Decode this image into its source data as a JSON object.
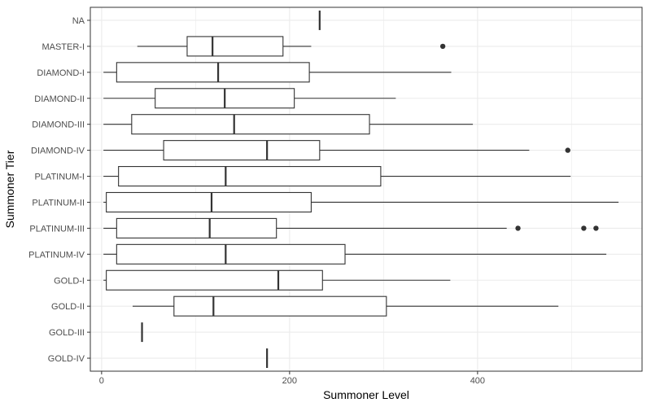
{
  "chart_data": {
    "type": "boxplot",
    "orientation": "horizontal",
    "xlabel": "Summoner Level",
    "ylabel": "Summoner Tier",
    "xlim": [
      -12,
      575
    ],
    "xticks": [
      0,
      200,
      400
    ],
    "grid": true,
    "theme": "bw",
    "colors": {
      "box_fill": "#ffffff",
      "line": "#333333",
      "grid": "#ebebeb",
      "panel_border": "#333333"
    },
    "categories": [
      "NA",
      "MASTER-I",
      "DIAMOND-I",
      "DIAMOND-II",
      "DIAMOND-III",
      "DIAMOND-IV",
      "PLATINUM-I",
      "PLATINUM-II",
      "PLATINUM-III",
      "PLATINUM-IV",
      "GOLD-I",
      "GOLD-II",
      "GOLD-III",
      "GOLD-IV"
    ],
    "boxes": [
      {
        "tier": "NA",
        "min": 232,
        "q1": 232,
        "median": 232,
        "q3": 232,
        "max": 232,
        "outliers": []
      },
      {
        "tier": "MASTER-I",
        "min": 38,
        "q1": 91,
        "median": 118,
        "q3": 193,
        "max": 223,
        "outliers": [
          363
        ]
      },
      {
        "tier": "DIAMOND-I",
        "min": 2,
        "q1": 16,
        "median": 124,
        "q3": 221,
        "max": 372,
        "outliers": []
      },
      {
        "tier": "DIAMOND-II",
        "min": 2,
        "q1": 57,
        "median": 131,
        "q3": 205,
        "max": 313,
        "outliers": []
      },
      {
        "tier": "DIAMOND-III",
        "min": 2,
        "q1": 32,
        "median": 141,
        "q3": 285,
        "max": 395,
        "outliers": []
      },
      {
        "tier": "DIAMOND-IV",
        "min": 2,
        "q1": 66,
        "median": 176,
        "q3": 232,
        "max": 455,
        "outliers": [
          496
        ]
      },
      {
        "tier": "PLATINUM-I",
        "min": 2,
        "q1": 18,
        "median": 132,
        "q3": 297,
        "max": 499,
        "outliers": []
      },
      {
        "tier": "PLATINUM-II",
        "min": 2,
        "q1": 5,
        "median": 117,
        "q3": 223,
        "max": 550,
        "outliers": []
      },
      {
        "tier": "PLATINUM-III",
        "min": 2,
        "q1": 16,
        "median": 115,
        "q3": 186,
        "max": 431,
        "outliers": [
          443,
          513,
          526
        ]
      },
      {
        "tier": "PLATINUM-IV",
        "min": 2,
        "q1": 16,
        "median": 132,
        "q3": 259,
        "max": 537,
        "outliers": []
      },
      {
        "tier": "GOLD-I",
        "min": 2,
        "q1": 5,
        "median": 188,
        "q3": 235,
        "max": 371,
        "outliers": []
      },
      {
        "tier": "GOLD-II",
        "min": 33,
        "q1": 77,
        "median": 119,
        "q3": 303,
        "max": 486,
        "outliers": []
      },
      {
        "tier": "GOLD-III",
        "min": 43,
        "q1": 43,
        "median": 43,
        "q3": 43,
        "max": 43,
        "outliers": []
      },
      {
        "tier": "GOLD-IV",
        "min": 176,
        "q1": 176,
        "median": 176,
        "q3": 176,
        "max": 176,
        "outliers": []
      }
    ]
  }
}
